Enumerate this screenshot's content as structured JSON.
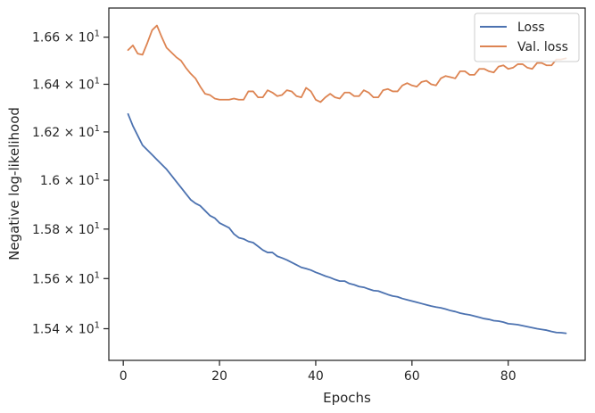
{
  "chart_data": {
    "type": "line",
    "xlabel": "Epochs",
    "ylabel": "Negative log-likelihood",
    "xlim": [
      -3,
      96
    ],
    "ylim": [
      15.275,
      16.725
    ],
    "yscale": "log",
    "grid": false,
    "legend_position": "top-right",
    "x_ticks": [
      {
        "value": 0,
        "label": "0"
      },
      {
        "value": 20,
        "label": "20"
      },
      {
        "value": 40,
        "label": "40"
      },
      {
        "value": 60,
        "label": "60"
      },
      {
        "value": 80,
        "label": "80"
      }
    ],
    "y_ticks": [
      {
        "value": 15.4,
        "mantissa": "1.54",
        "base": "10",
        "exp": "1"
      },
      {
        "value": 15.6,
        "mantissa": "1.56",
        "base": "10",
        "exp": "1"
      },
      {
        "value": 15.8,
        "mantissa": "1.58",
        "base": "10",
        "exp": "1"
      },
      {
        "value": 16.0,
        "mantissa": "1.6",
        "base": "10",
        "exp": "1"
      },
      {
        "value": 16.2,
        "mantissa": "1.62",
        "base": "10",
        "exp": "1"
      },
      {
        "value": 16.4,
        "mantissa": "1.64",
        "base": "10",
        "exp": "1"
      },
      {
        "value": 16.6,
        "mantissa": "1.66",
        "base": "10",
        "exp": "1"
      }
    ],
    "series": [
      {
        "name": "Loss",
        "color": "#4c72b0",
        "x": [
          1,
          2,
          3,
          4,
          5,
          6,
          7,
          8,
          9,
          10,
          11,
          12,
          13,
          14,
          15,
          16,
          17,
          18,
          19,
          20,
          21,
          22,
          23,
          24,
          25,
          26,
          27,
          28,
          29,
          30,
          31,
          32,
          33,
          34,
          35,
          36,
          37,
          38,
          39,
          40,
          41,
          42,
          43,
          44,
          45,
          46,
          47,
          48,
          49,
          50,
          51,
          52,
          53,
          54,
          55,
          56,
          57,
          58,
          59,
          60,
          61,
          62,
          63,
          64,
          65,
          66,
          67,
          68,
          69,
          70,
          71,
          72,
          73,
          74,
          75,
          76,
          77,
          78,
          79,
          80,
          81,
          82,
          83,
          84,
          85,
          86,
          87,
          88,
          89,
          90,
          91,
          92
        ],
        "y": [
          16.275,
          16.225,
          16.185,
          16.145,
          16.125,
          16.105,
          16.085,
          16.065,
          16.045,
          16.02,
          15.995,
          15.97,
          15.945,
          15.92,
          15.905,
          15.895,
          15.875,
          15.855,
          15.845,
          15.825,
          15.815,
          15.805,
          15.78,
          15.765,
          15.76,
          15.75,
          15.745,
          15.73,
          15.715,
          15.705,
          15.705,
          15.69,
          15.683,
          15.675,
          15.665,
          15.655,
          15.645,
          15.64,
          15.634,
          15.625,
          15.618,
          15.61,
          15.604,
          15.596,
          15.59,
          15.59,
          15.58,
          15.575,
          15.568,
          15.565,
          15.558,
          15.552,
          15.55,
          15.543,
          15.536,
          15.53,
          15.527,
          15.52,
          15.515,
          15.51,
          15.505,
          15.5,
          15.495,
          15.49,
          15.486,
          15.483,
          15.478,
          15.472,
          15.468,
          15.462,
          15.458,
          15.455,
          15.45,
          15.445,
          15.44,
          15.437,
          15.432,
          15.43,
          15.426,
          15.42,
          15.418,
          15.416,
          15.412,
          15.408,
          15.404,
          15.4,
          15.397,
          15.394,
          15.389,
          15.385,
          15.384,
          15.382
        ]
      },
      {
        "name": "Val. loss",
        "color": "#dd8452",
        "x": [
          1,
          2,
          3,
          4,
          5,
          6,
          7,
          8,
          9,
          10,
          11,
          12,
          13,
          14,
          15,
          16,
          17,
          18,
          19,
          20,
          21,
          22,
          23,
          24,
          25,
          26,
          27,
          28,
          29,
          30,
          31,
          32,
          33,
          34,
          35,
          36,
          37,
          38,
          39,
          40,
          41,
          42,
          43,
          44,
          45,
          46,
          47,
          48,
          49,
          50,
          51,
          52,
          53,
          54,
          55,
          56,
          57,
          58,
          59,
          60,
          61,
          62,
          63,
          64,
          65,
          66,
          67,
          68,
          69,
          70,
          71,
          72,
          73,
          74,
          75,
          76,
          77,
          78,
          79,
          80,
          81,
          82,
          83,
          84,
          85,
          86,
          87,
          88,
          89,
          90,
          91,
          92
        ],
        "y": [
          16.545,
          16.565,
          16.53,
          16.525,
          16.575,
          16.63,
          16.65,
          16.6,
          16.555,
          16.535,
          16.515,
          16.5,
          16.47,
          16.445,
          16.425,
          16.39,
          16.36,
          16.355,
          16.34,
          16.335,
          16.335,
          16.335,
          16.34,
          16.335,
          16.335,
          16.37,
          16.37,
          16.345,
          16.345,
          16.375,
          16.365,
          16.35,
          16.355,
          16.375,
          16.37,
          16.35,
          16.345,
          16.385,
          16.37,
          16.335,
          16.325,
          16.345,
          16.36,
          16.345,
          16.34,
          16.365,
          16.365,
          16.35,
          16.35,
          16.375,
          16.365,
          16.345,
          16.345,
          16.375,
          16.38,
          16.37,
          16.37,
          16.395,
          16.405,
          16.395,
          16.39,
          16.41,
          16.415,
          16.4,
          16.395,
          16.425,
          16.435,
          16.43,
          16.425,
          16.455,
          16.455,
          16.44,
          16.44,
          16.465,
          16.465,
          16.455,
          16.45,
          16.475,
          16.48,
          16.465,
          16.47,
          16.485,
          16.485,
          16.47,
          16.465,
          16.49,
          16.49,
          16.48,
          16.48,
          16.505,
          16.505,
          16.51
        ]
      }
    ]
  }
}
